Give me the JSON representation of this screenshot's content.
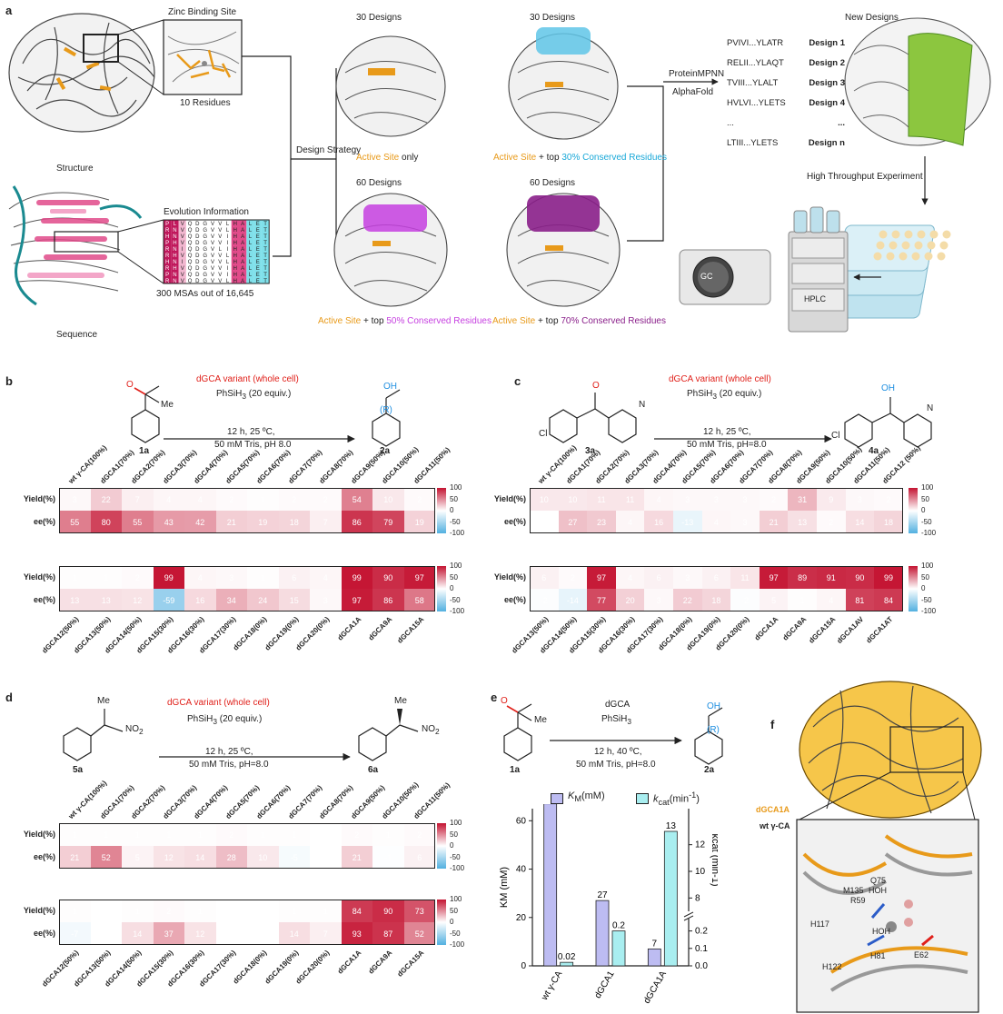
{
  "panel_labels": {
    "a": "a",
    "b": "b",
    "c": "c",
    "d": "d",
    "e": "e",
    "f": "f"
  },
  "panel_a": {
    "zinc_title": "Zinc Binding Site",
    "residues": "10 Residues",
    "structure": "Structure",
    "evolution": "Evolution Information",
    "msa": "300 MSAs out of 16,645",
    "sequence": "Sequence",
    "design_strategy": "Design Strategy",
    "d30a": "30 Designs",
    "d30b": "30 Designs",
    "d60a": "60 Designs",
    "d60b": "60 Designs",
    "active_site": "Active Site",
    "only": " only",
    "plus_top": " + top ",
    "c30": "30% Conserved Residues",
    "c50": "50% Conserved Residues",
    "c70": "70% Conserved Residues",
    "proteinmpnn": "ProteinMPNN",
    "alphafold": "AlphaFold",
    "new_designs": "New Designs",
    "hte": "High Throughput Experiment",
    "gc": "GC",
    "hplc": "HPLC",
    "seqs": [
      {
        "seq": "PVIVI...YLATR",
        "name": "Design 1"
      },
      {
        "seq": "RELII...YLAQT",
        "name": "Design 2"
      },
      {
        "seq": "TVIII...YLALT",
        "name": "Design 3"
      },
      {
        "seq": "HVLVI...YLETS",
        "name": "Design 4"
      },
      {
        "seq": "...",
        "name": "..."
      },
      {
        "seq": "LTIII...YLETS",
        "name": "Design n"
      }
    ],
    "msa_rows": [
      "PLVQDGVVLHALET",
      "RNVQDGVVLHALET",
      "HNVQDGVVIHALET",
      "PHVQDGVVIHALET",
      "RNIQDGVLIHALET",
      "RHVQDGVVLHALET",
      "HNIQDGVVLHALET",
      "RHVQDGVVIHALET",
      "PNVQDGVVIHALET",
      "RNVQDGVVLHALET"
    ]
  },
  "panel_b": {
    "enzyme": "dGCA variant (whole cell)",
    "reagent": "PhSiH",
    "reagent_sub": "3",
    "reagent_tail": " (20 equiv.)",
    "cond1": "12 h, 25 ºC,",
    "cond2": "50 mM Tris, pH 8.0",
    "sub": "1a",
    "prod": "2a",
    "me": "Me",
    "oh": "OH",
    "r": "(R)",
    "heat_top": {
      "cols": [
        "wt γ-CA(100%)",
        "dGCA1(70%)",
        "dGCA2(70%)",
        "dGCA3(70%)",
        "dGCA4(70%)",
        "dGCA5(70%)",
        "dGCA6(70%)",
        "dGCA7(70%)",
        "dGCA8(70%)",
        "dGCA9(50%)",
        "dGCA10(50%)",
        "dGCA11(50%)"
      ],
      "rows": [
        "Yield(%)",
        "ee(%)"
      ],
      "values": [
        [
          3,
          22,
          7,
          4,
          4,
          2,
          1,
          2,
          2,
          54,
          10,
          2
        ],
        [
          55,
          80,
          55,
          43,
          42,
          21,
          19,
          18,
          7,
          86,
          79,
          19
        ]
      ]
    },
    "heat_bottom": {
      "cols": [
        "dGCA12(50%)",
        "dGCA13(50%)",
        "dGCA14(50%)",
        "dGCA15(30%)",
        "dGCA16(30%)",
        "dGCA17(30%)",
        "dGCA18(0%)",
        "dGCA19(0%)",
        "dGCA20(0%)",
        "dGCA1A",
        "dGCA9A",
        "dGCA15A"
      ],
      "rows": [
        "Yield(%)",
        "ee(%)"
      ],
      "values": [
        [
          1,
          1,
          2,
          99,
          4,
          3,
          1,
          6,
          4,
          99,
          90,
          97
        ],
        [
          13,
          13,
          12,
          -59,
          16,
          34,
          24,
          15,
          3,
          97,
          86,
          58
        ]
      ]
    }
  },
  "panel_c": {
    "enzyme": "dGCA variant (whole cell)",
    "reagent": "PhSiH",
    "reagent_sub": "3",
    "reagent_tail": " (20 equiv.)",
    "cond1": "12 h, 25 ºC,",
    "cond2": "50 mM Tris, pH=8.0",
    "sub": "3a",
    "prod": "4a",
    "cl": "Cl",
    "n": "N",
    "oh": "OH",
    "heat_top": {
      "cols": [
        "wt γ-CA(100%)",
        "dGCA1(70%)",
        "dGCA2(70%)",
        "dGCA3(70%)",
        "dGCA4(70%)",
        "dGCA5(70%)",
        "dGCA6(70%)",
        "dGCA7(70%)",
        "dGCA8(70%)",
        "dGCA9(50%)",
        "dGCA10(50%)",
        "dGCA11(50%)",
        "dGCA12 (50%)"
      ],
      "rows": [
        "Yield(%)",
        "ee(%)"
      ],
      "values": [
        [
          10,
          10,
          11,
          11,
          4,
          3,
          3,
          3,
          2,
          31,
          9,
          3,
          2
        ],
        [
          0,
          27,
          23,
          4,
          16,
          -13,
          4,
          3,
          21,
          13,
          2,
          14,
          18
        ]
      ]
    },
    "heat_bottom": {
      "cols": [
        "dGCA13(50%)",
        "dGCA14(50%)",
        "dGCA15(30%)",
        "dGCA16(30%)",
        "dGCA17(30%)",
        "dGCA18(0%)",
        "dGCA19(0%)",
        "dGCA20(0%)",
        "dGCA1A",
        "dGCA9A",
        "dGCA15A",
        "dGCA1AV",
        "dGCA1AT"
      ],
      "rows": [
        "Yield(%)",
        "ee(%)"
      ],
      "values": [
        [
          6,
          2,
          97,
          4,
          6,
          3,
          6,
          11,
          97,
          89,
          91,
          90,
          99
        ],
        [
          -2,
          -14,
          77,
          20,
          3,
          22,
          18,
          -2,
          5,
          1,
          4,
          81,
          84
        ]
      ]
    }
  },
  "panel_d": {
    "enzyme": "dGCA variant (whole cell)",
    "reagent": "PhSiH",
    "reagent_sub": "3",
    "reagent_tail": " (20 equiv.)",
    "cond1": "12 h, 25 ºC,",
    "cond2": "50 mM Tris, pH=8.0",
    "sub": "5a",
    "prod": "6a",
    "me": "Me",
    "no2": "NO",
    "no2_sub": "2",
    "heat_top": {
      "cols": [
        "wt γ-CA(100%)",
        "dGCA1(70%)",
        "dGCA2(70%)",
        "dGCA3(70%)",
        "dGCA4(70%)",
        "dGCA5(70%)",
        "dGCA6(70%)",
        "dGCA7(70%)",
        "dGCA8(70%)",
        "dGCA9(50%)",
        "dGCA10(50%)",
        "dGCA11(50%)"
      ],
      "rows": [
        "Yield(%)",
        "ee(%)"
      ],
      "values": [
        [
          1,
          1,
          1,
          1,
          1,
          2,
          1,
          1,
          0,
          2,
          1,
          2
        ],
        [
          21,
          52,
          5,
          12,
          14,
          28,
          10,
          -5,
          0,
          21,
          -1,
          6
        ]
      ]
    },
    "heat_bottom": {
      "cols": [
        "dGCA12(50%)",
        "dGCA13(50%)",
        "dGCA14(50%)",
        "dGCA15(30%)",
        "dGCA16(30%)",
        "dGCA17(30%)",
        "dGCA18(0%)",
        "dGCA19(0%)",
        "dGCA20(0%)",
        "dGCA1A",
        "dGCA9A",
        "dGCA15A"
      ],
      "rows": [
        "Yield(%)",
        "ee(%)"
      ],
      "values": [
        [
          1,
          0,
          1,
          2,
          1,
          0,
          0,
          1,
          1,
          84,
          90,
          73
        ],
        [
          -7,
          0,
          14,
          37,
          12,
          0,
          0,
          14,
          7,
          93,
          87,
          52
        ]
      ]
    }
  },
  "colorbar": {
    "ticks": [
      "100",
      "50",
      "0",
      "-50",
      "-100"
    ]
  },
  "panel_e": {
    "enzyme": "dGCA",
    "reagent": "PhSiH",
    "reagent_sub": "3",
    "cond1": "12 h, 40 ºC,",
    "cond2": "50 mM Tris, pH=8.0",
    "sub": "1a",
    "prod": "2a",
    "me": "Me",
    "oh": "OH",
    "r": "(R)",
    "legend_km": "K",
    "legend_km_sub": "M",
    "legend_km_unit": "(mM)",
    "legend_kcat": "k",
    "legend_kcat_sub": "cat",
    "legend_kcat_unit": "(min",
    "legend_kcat_sup": "-1",
    "legend_kcat_close": ")",
    "ylabel_left": "K",
    "ylabel_left_sub": "M",
    "ylabel_left_unit": " (mM)",
    "ylabel_right": "k",
    "ylabel_right_sub": "cat",
    "ylabel_right_unit": " (min",
    "ylabel_right_sup": "-1",
    "ylabel_right_close": ")",
    "left_ticks": [
      "0",
      "20",
      "40",
      "60"
    ],
    "right_ticks": [
      "0.0",
      "0.1",
      "0.2",
      "8",
      "10",
      "12"
    ],
    "colors": {
      "km": "#bdbcf2",
      "kcat": "#a9eef0"
    }
  },
  "chart_data": {
    "type": "bar",
    "categories": [
      "wt γ-CA",
      "dGCA1",
      "dGCA1A"
    ],
    "series": [
      {
        "name": "KM(mM)",
        "values": [
          67,
          27,
          7
        ],
        "labels": [
          "67",
          "27",
          "7"
        ],
        "axis": "left"
      },
      {
        "name": "kcat(min-1)",
        "values": [
          0.02,
          0.2,
          13
        ],
        "labels": [
          "0.02",
          "0.2",
          "13"
        ],
        "axis": "right"
      }
    ],
    "ylim_left": [
      0,
      65
    ],
    "right_axis_broken": true,
    "right_ticks": [
      0.0,
      0.1,
      0.2,
      8,
      10,
      12
    ]
  },
  "panel_f": {
    "dgca1a": "dGCA1A",
    "wt": "wt γ-CA",
    "res": [
      "Q75",
      "M135",
      "R59",
      "HOH",
      "HOH",
      "H117",
      "H81",
      "E62",
      "H122"
    ]
  }
}
